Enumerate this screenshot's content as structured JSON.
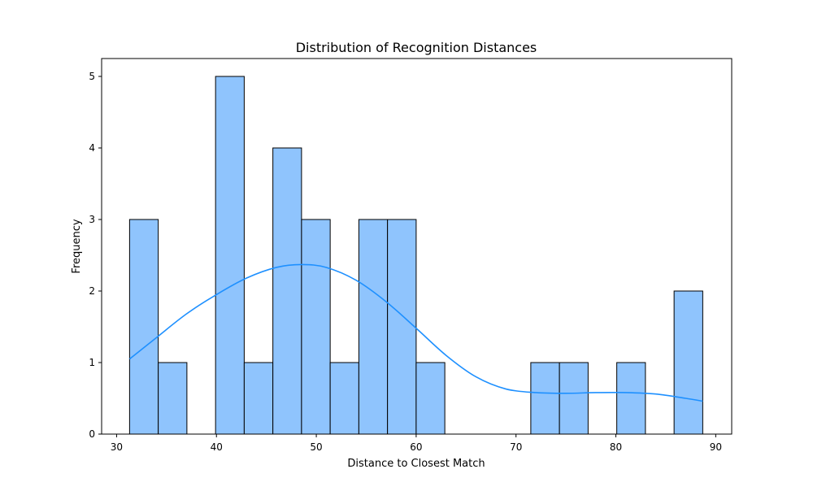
{
  "chart_data": {
    "type": "bar",
    "subtype": "histogram",
    "title": "Distribution of Recognition Distances",
    "xlabel": "Distance to Closest Match",
    "ylabel": "Frequency",
    "xlim": [
      28.5,
      91.6
    ],
    "ylim": [
      0,
      5.25
    ],
    "xticks": [
      30,
      40,
      50,
      60,
      70,
      80,
      90
    ],
    "yticks": [
      0,
      1,
      2,
      3,
      4,
      5
    ],
    "bin_start": 31.3,
    "bin_width": 2.87,
    "counts": [
      3,
      1,
      0,
      5,
      1,
      4,
      3,
      1,
      3,
      3,
      1,
      0,
      0,
      0,
      1,
      1,
      0,
      1,
      0,
      2
    ],
    "kde": {
      "x": [
        31.3,
        34,
        37,
        40,
        43,
        46,
        48.5,
        51,
        54,
        57,
        60,
        63,
        66,
        69,
        72,
        75,
        78,
        81,
        84,
        87,
        88.7
      ],
      "y": [
        1.05,
        1.35,
        1.68,
        1.95,
        2.18,
        2.33,
        2.37,
        2.33,
        2.15,
        1.85,
        1.48,
        1.1,
        0.8,
        0.63,
        0.58,
        0.57,
        0.58,
        0.58,
        0.56,
        0.5,
        0.46
      ]
    },
    "colors": {
      "bar_fill": "#8fc4fd",
      "bar_edge": "#000000",
      "kde_line": "#1e90ff"
    },
    "grid": false,
    "legend": "none"
  }
}
